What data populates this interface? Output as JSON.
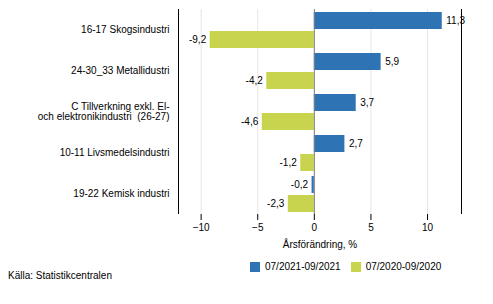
{
  "chart_data": {
    "type": "bar",
    "orientation": "horizontal",
    "categories": [
      "16-17 Skogsindustri",
      "24-30_33 Metallidustri",
      "C Tillverkning exkl. El-\noch elektronikindustri  (26-27)",
      "10-11 Livsmedelsindustri",
      "19-22 Kemisk industri"
    ],
    "series": [
      {
        "name": "07/2021-09/2021",
        "color": "#2E74B5",
        "values": [
          11.3,
          5.9,
          3.7,
          2.7,
          -0.2
        ],
        "value_labels": [
          "11,3",
          "5,9",
          "3,7",
          "2,7",
          "-0,2"
        ]
      },
      {
        "name": "07/2020-09/2020",
        "color": "#C8D44E",
        "values": [
          -9.2,
          -4.2,
          -4.6,
          -1.2,
          -2.3
        ],
        "value_labels": [
          "-9,2",
          "-4,2",
          "-4,6",
          "-1,2",
          "-2,3"
        ]
      }
    ],
    "x_label": "Årsförändring, %",
    "xlim": [
      -12,
      13
    ],
    "xticks": [
      -10,
      -5,
      0,
      5,
      10
    ],
    "grid": true,
    "data_labels": true,
    "legend": "bottom",
    "caption": "Källa: Statistikcentralen"
  }
}
